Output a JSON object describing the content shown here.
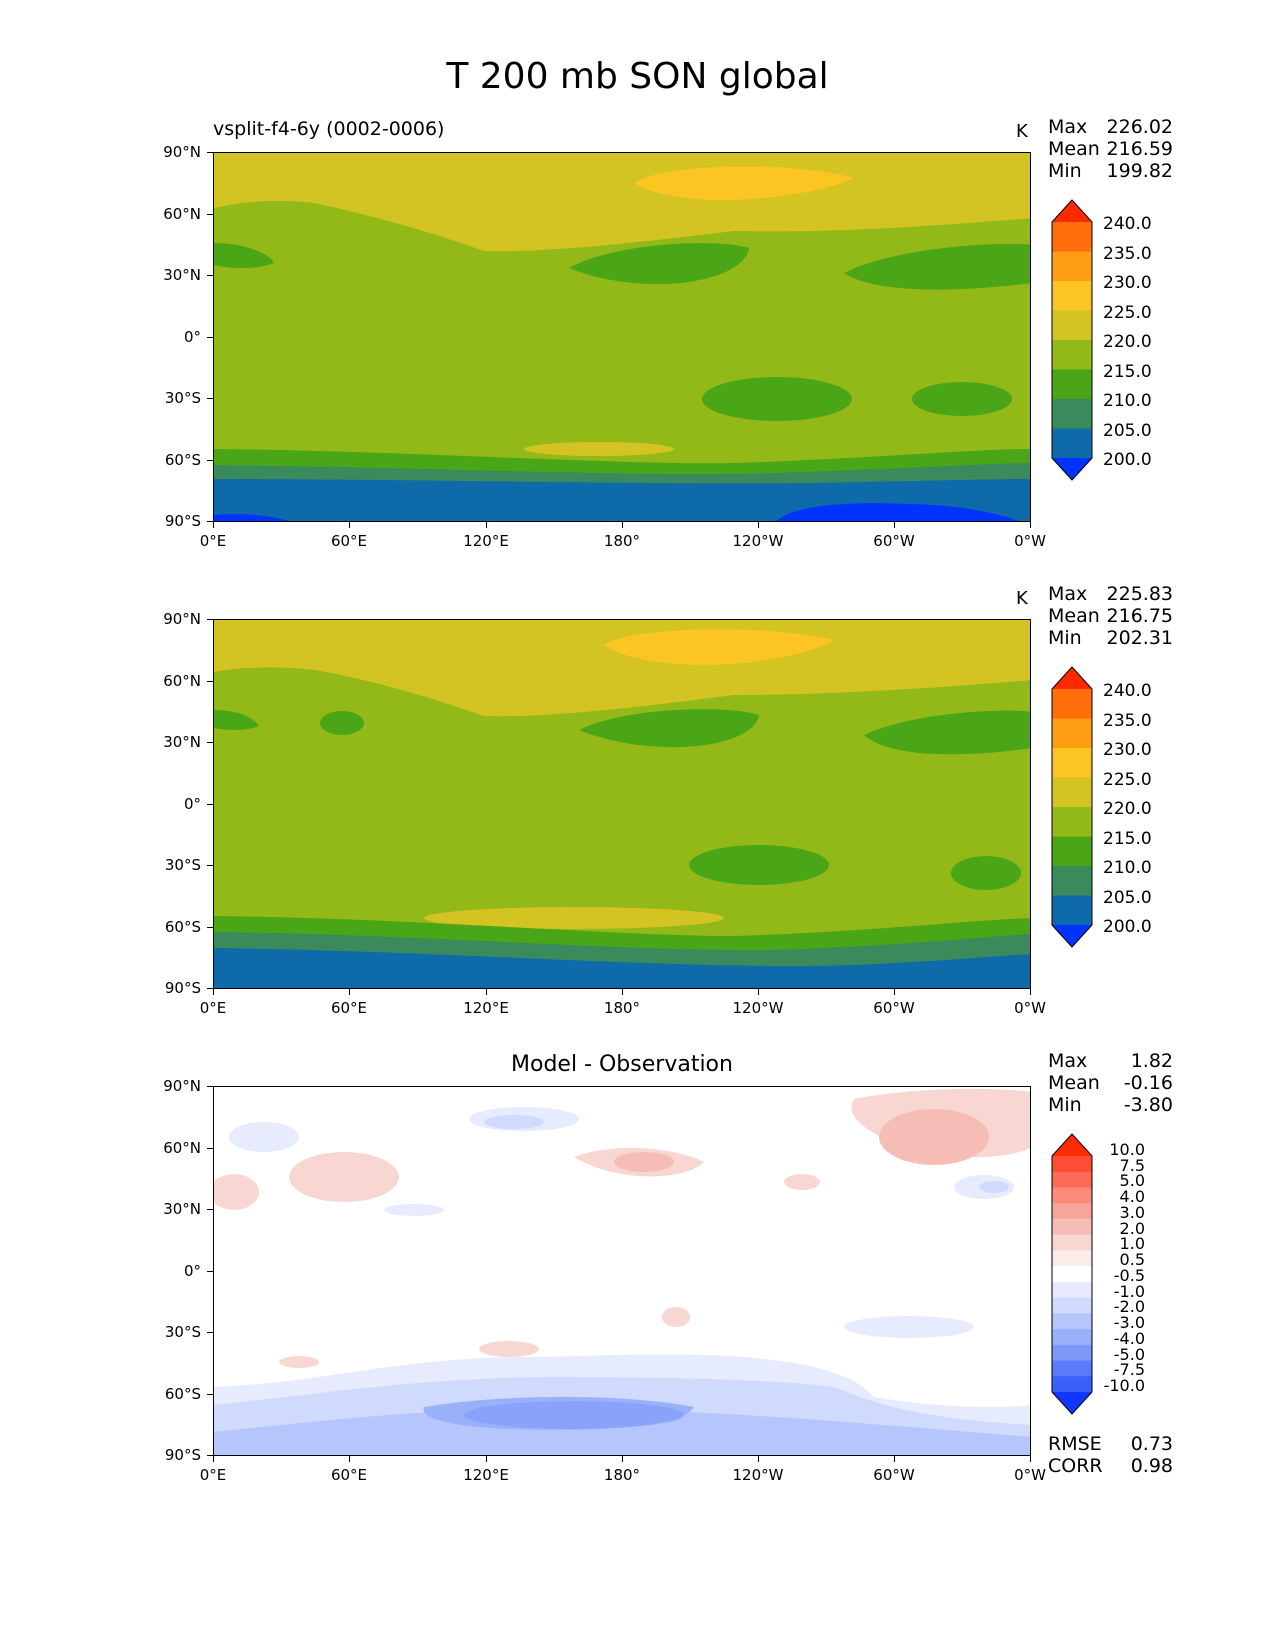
{
  "title": "T 200 mb SON global",
  "panels": [
    {
      "subtitle": "vsplit-f4-6y (0002-0006)",
      "units": "K",
      "stats": [
        {
          "label": "Max",
          "value": "226.02"
        },
        {
          "label": "Mean",
          "value": "216.59"
        },
        {
          "label": "Min",
          "value": "199.82"
        }
      ]
    },
    {
      "subtitle": "",
      "units": "K",
      "stats": [
        {
          "label": "Max",
          "value": "225.83"
        },
        {
          "label": "Mean",
          "value": "216.75"
        },
        {
          "label": "Min",
          "value": "202.31"
        }
      ]
    },
    {
      "center_title": "Model - Observation",
      "stats": [
        {
          "label": "Max",
          "value": "1.82"
        },
        {
          "label": "Mean",
          "value": "-0.16"
        },
        {
          "label": "Min",
          "value": "-3.80"
        }
      ],
      "metrics": [
        {
          "label": "RMSE",
          "value": "0.73"
        },
        {
          "label": "CORR",
          "value": "0.98"
        }
      ]
    }
  ],
  "lat_ticks": [
    "90°N",
    "60°N",
    "30°N",
    "0°",
    "30°S",
    "60°S",
    "90°S"
  ],
  "lon_ticks": [
    "0°E",
    "60°E",
    "120°E",
    "180°",
    "120°W",
    "60°W",
    "0°W"
  ],
  "colorbar_abs": {
    "labels": [
      "240.0",
      "235.0",
      "230.0",
      "225.0",
      "220.0",
      "215.0",
      "210.0",
      "205.0",
      "200.0"
    ],
    "colors": [
      "#ff2a00",
      "#ff6e0a",
      "#ff9e14",
      "#fcc522",
      "#d3c424",
      "#93b918",
      "#4aa617",
      "#3a8a5b",
      "#0e6aa8",
      "#0033ff"
    ]
  },
  "colorbar_diff": {
    "labels": [
      "10.0",
      "7.5",
      "5.0",
      "4.0",
      "3.0",
      "2.0",
      "1.0",
      "0.5",
      "-0.5",
      "-1.0",
      "-2.0",
      "-3.0",
      "-4.0",
      "-5.0",
      "-7.5",
      "-10.0"
    ],
    "colors": [
      "#ff2a00",
      "#fd4d33",
      "#fb6b55",
      "#f98b78",
      "#f7a59a",
      "#f6bdb6",
      "#f8d7d2",
      "#fbecea",
      "#ffffff",
      "#e6ecfe",
      "#d0dafd",
      "#b6c6fc",
      "#9ab0fb",
      "#7d98fa",
      "#5b7cf9",
      "#3a5ffb",
      "#1036ff"
    ]
  }
}
